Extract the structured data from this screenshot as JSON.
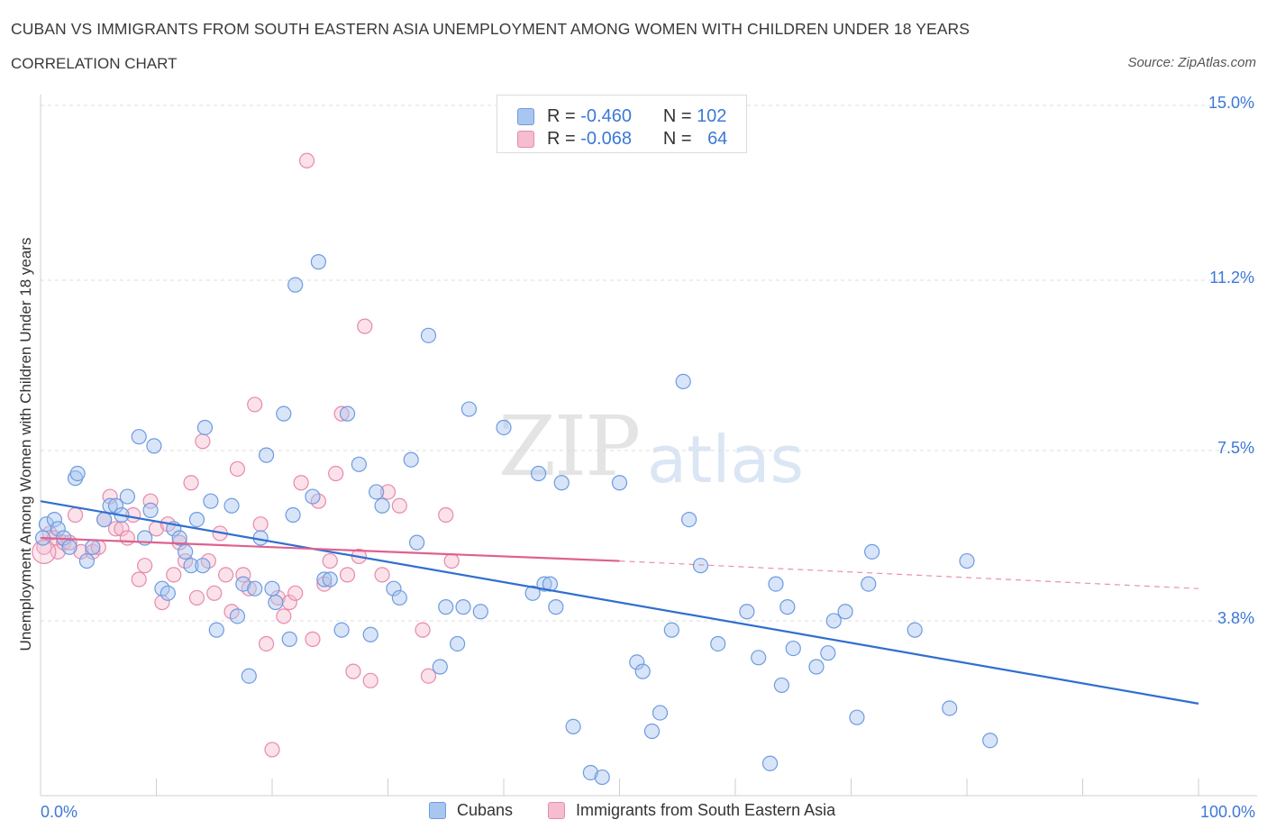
{
  "header": {
    "title": "CUBAN VS IMMIGRANTS FROM SOUTH EASTERN ASIA UNEMPLOYMENT AMONG WOMEN WITH CHILDREN UNDER 18 YEARS",
    "subtitle": "CORRELATION CHART",
    "source": "Source: ZipAtlas.com"
  },
  "watermark": {
    "zip": "ZIP",
    "atlas": "atlas"
  },
  "legend_top": {
    "rows": [
      {
        "r_label": "R =",
        "r_value": "-0.460",
        "n_label": "N =",
        "n_value": "102"
      },
      {
        "r_label": "R =",
        "r_value": "-0.068",
        "n_label": "N =",
        "n_value": "64"
      }
    ]
  },
  "legend_bottom": {
    "items": [
      "Cubans",
      "Immigrants from South Eastern Asia"
    ]
  },
  "chart_data": {
    "type": "scatter",
    "title": "CUBAN VS IMMIGRANTS FROM SOUTH EASTERN ASIA UNEMPLOYMENT AMONG WOMEN WITH CHILDREN UNDER 18 YEARS",
    "subtitle": "CORRELATION CHART",
    "xlabel": "",
    "ylabel": "Unemployment Among Women with Children Under 18 years",
    "xlim": [
      0,
      100
    ],
    "ylim": [
      0,
      15
    ],
    "x_tick_labels": [
      "0.0%",
      "100.0%"
    ],
    "y_ticks": [
      3.8,
      7.5,
      11.2,
      15.0
    ],
    "y_tick_labels": [
      "3.8%",
      "7.5%",
      "11.2%",
      "15.0%"
    ],
    "grid": true,
    "legend_position": "bottom",
    "colors": {
      "cubans_fill": "#a9c6f0",
      "cubans_stroke": "#6d9be0",
      "cubans_line": "#2f6fce",
      "sea_fill": "#f6bcd0",
      "sea_stroke": "#e68aab",
      "sea_line": "#e0608e",
      "tick": "#3c78d8",
      "grid": "#dcdcdc"
    },
    "series": [
      {
        "name": "Cubans",
        "stats": {
          "R": -0.46,
          "N": 102
        },
        "trend": {
          "x": [
            0,
            100
          ],
          "y": [
            6.4,
            2.0
          ]
        },
        "points": [
          [
            0.5,
            5.9
          ],
          [
            1.2,
            6.0
          ],
          [
            1.5,
            5.8
          ],
          [
            2.0,
            5.6
          ],
          [
            2.5,
            5.4
          ],
          [
            3.0,
            6.9
          ],
          [
            3.2,
            7.0
          ],
          [
            4.0,
            5.1
          ],
          [
            4.5,
            5.4
          ],
          [
            5.5,
            6.0
          ],
          [
            6.0,
            6.3
          ],
          [
            6.5,
            6.3
          ],
          [
            7.0,
            6.1
          ],
          [
            7.5,
            6.5
          ],
          [
            8.5,
            7.8
          ],
          [
            9.0,
            5.6
          ],
          [
            9.5,
            6.2
          ],
          [
            9.8,
            7.6
          ],
          [
            10.5,
            4.5
          ],
          [
            11.0,
            4.4
          ],
          [
            11.5,
            5.8
          ],
          [
            12.0,
            5.6
          ],
          [
            12.5,
            5.3
          ],
          [
            13.0,
            5.0
          ],
          [
            13.5,
            6.0
          ],
          [
            14.0,
            5.0
          ],
          [
            14.2,
            8.0
          ],
          [
            14.7,
            6.4
          ],
          [
            15.2,
            3.6
          ],
          [
            16.5,
            6.3
          ],
          [
            17.0,
            3.9
          ],
          [
            17.5,
            4.6
          ],
          [
            18.0,
            2.6
          ],
          [
            18.5,
            4.5
          ],
          [
            19.0,
            5.6
          ],
          [
            19.5,
            7.4
          ],
          [
            20.0,
            4.5
          ],
          [
            20.3,
            4.2
          ],
          [
            21.0,
            8.3
          ],
          [
            21.5,
            3.4
          ],
          [
            21.8,
            6.1
          ],
          [
            22.0,
            11.1
          ],
          [
            23.5,
            6.5
          ],
          [
            24.0,
            11.6
          ],
          [
            24.5,
            4.7
          ],
          [
            25.0,
            4.7
          ],
          [
            26.0,
            3.6
          ],
          [
            26.5,
            8.3
          ],
          [
            27.5,
            7.2
          ],
          [
            28.5,
            3.5
          ],
          [
            29.0,
            6.6
          ],
          [
            29.5,
            6.3
          ],
          [
            30.5,
            4.5
          ],
          [
            31.0,
            4.3
          ],
          [
            32.0,
            7.3
          ],
          [
            32.5,
            5.5
          ],
          [
            33.5,
            10.0
          ],
          [
            34.5,
            2.8
          ],
          [
            35.0,
            4.1
          ],
          [
            36.0,
            3.3
          ],
          [
            36.5,
            4.1
          ],
          [
            37.0,
            8.4
          ],
          [
            38.0,
            4.0
          ],
          [
            40.0,
            8.0
          ],
          [
            42.5,
            4.4
          ],
          [
            43.5,
            4.6
          ],
          [
            44.0,
            4.6
          ],
          [
            44.5,
            4.1
          ],
          [
            43.0,
            7.0
          ],
          [
            45.0,
            6.8
          ],
          [
            46.0,
            1.5
          ],
          [
            47.5,
            0.5
          ],
          [
            48.5,
            0.4
          ],
          [
            50.0,
            6.8
          ],
          [
            51.5,
            2.9
          ],
          [
            52.0,
            2.7
          ],
          [
            52.8,
            1.4
          ],
          [
            53.5,
            1.8
          ],
          [
            54.5,
            3.6
          ],
          [
            55.5,
            9.0
          ],
          [
            56.0,
            6.0
          ],
          [
            57.0,
            5.0
          ],
          [
            58.5,
            3.3
          ],
          [
            61.0,
            4.0
          ],
          [
            62.0,
            3.0
          ],
          [
            63.0,
            0.7
          ],
          [
            63.5,
            4.6
          ],
          [
            64.0,
            2.4
          ],
          [
            64.5,
            4.1
          ],
          [
            65.0,
            3.2
          ],
          [
            67.0,
            2.8
          ],
          [
            68.0,
            3.1
          ],
          [
            68.5,
            3.8
          ],
          [
            69.5,
            4.0
          ],
          [
            70.5,
            1.7
          ],
          [
            71.5,
            4.6
          ],
          [
            71.8,
            5.3
          ],
          [
            75.5,
            3.6
          ],
          [
            78.5,
            1.9
          ],
          [
            80.0,
            5.1
          ],
          [
            82.0,
            1.2
          ],
          [
            0.2,
            5.6
          ]
        ]
      },
      {
        "name": "Immigrants from South Eastern Asia",
        "stats": {
          "R": -0.068,
          "N": 64
        },
        "trend": {
          "x": [
            0,
            50,
            100
          ],
          "y": [
            5.6,
            5.1,
            4.5
          ]
        },
        "points": [
          [
            0.3,
            5.4
          ],
          [
            0.8,
            5.7
          ],
          [
            1.2,
            5.6
          ],
          [
            1.5,
            5.3
          ],
          [
            2.0,
            5.5
          ],
          [
            2.5,
            5.5
          ],
          [
            3.0,
            6.1
          ],
          [
            3.5,
            5.3
          ],
          [
            4.5,
            5.3
          ],
          [
            5.0,
            5.4
          ],
          [
            5.5,
            6.0
          ],
          [
            6.0,
            6.5
          ],
          [
            6.5,
            5.8
          ],
          [
            7.0,
            5.8
          ],
          [
            7.5,
            5.6
          ],
          [
            8.0,
            6.1
          ],
          [
            8.5,
            4.7
          ],
          [
            9.0,
            5.0
          ],
          [
            9.5,
            6.4
          ],
          [
            10.0,
            5.8
          ],
          [
            10.5,
            4.2
          ],
          [
            11.0,
            5.9
          ],
          [
            11.5,
            4.8
          ],
          [
            12.0,
            5.5
          ],
          [
            12.5,
            5.1
          ],
          [
            13.0,
            6.8
          ],
          [
            13.5,
            4.3
          ],
          [
            14.0,
            7.7
          ],
          [
            14.5,
            5.1
          ],
          [
            15.0,
            4.4
          ],
          [
            15.5,
            5.7
          ],
          [
            16.0,
            4.8
          ],
          [
            16.5,
            4.0
          ],
          [
            17.0,
            7.1
          ],
          [
            17.5,
            4.8
          ],
          [
            18.0,
            4.5
          ],
          [
            18.5,
            8.5
          ],
          [
            19.0,
            5.9
          ],
          [
            19.5,
            3.3
          ],
          [
            20.0,
            1.0
          ],
          [
            20.5,
            4.3
          ],
          [
            21.0,
            3.9
          ],
          [
            21.5,
            4.2
          ],
          [
            22.0,
            4.4
          ],
          [
            22.5,
            6.8
          ],
          [
            23.0,
            13.8
          ],
          [
            23.5,
            3.4
          ],
          [
            24.0,
            6.4
          ],
          [
            24.5,
            4.6
          ],
          [
            25.0,
            5.1
          ],
          [
            25.5,
            7.0
          ],
          [
            26.0,
            8.3
          ],
          [
            26.5,
            4.8
          ],
          [
            27.0,
            2.7
          ],
          [
            27.5,
            5.2
          ],
          [
            28.0,
            10.2
          ],
          [
            28.5,
            2.5
          ],
          [
            29.5,
            4.8
          ],
          [
            30.0,
            6.6
          ],
          [
            31.0,
            6.3
          ],
          [
            33.0,
            3.6
          ],
          [
            33.5,
            2.6
          ],
          [
            35.0,
            6.1
          ],
          [
            35.5,
            5.1
          ]
        ]
      }
    ]
  }
}
